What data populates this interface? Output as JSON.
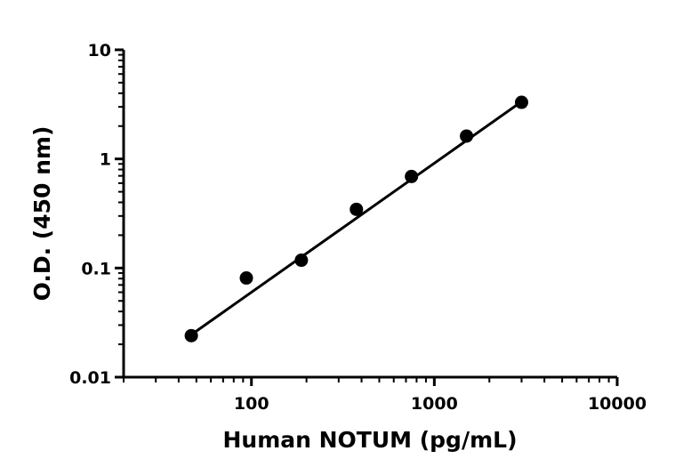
{
  "chart_data": {
    "type": "scatter",
    "title": "",
    "xlabel": "Human NOTUM (pg/mL)",
    "ylabel": "O.D. (450 nm)",
    "x_scale": "log",
    "y_scale": "log",
    "xlim": [
      20,
      10000
    ],
    "ylim": [
      0.01,
      10
    ],
    "x_ticks": [
      100,
      1000,
      10000
    ],
    "x_tick_labels": [
      "100",
      "1000",
      "10000"
    ],
    "y_ticks": [
      0.01,
      0.1,
      1,
      10
    ],
    "y_tick_labels": [
      "0.01",
      "0.1",
      "1",
      "10"
    ],
    "grid": false,
    "legend": "none",
    "series": [
      {
        "points": [
          {
            "x": 46.9,
            "y": 0.024
          },
          {
            "x": 93.8,
            "y": 0.081
          },
          {
            "x": 187.5,
            "y": 0.118
          },
          {
            "x": 375,
            "y": 0.345
          },
          {
            "x": 750,
            "y": 0.69
          },
          {
            "x": 1500,
            "y": 1.62
          },
          {
            "x": 3000,
            "y": 3.3
          }
        ],
        "marker_color": "#000000"
      }
    ],
    "fit_line": {
      "x": [
        46.9,
        3000
      ],
      "y": [
        0.0245,
        3.35
      ],
      "color": "#000000"
    }
  }
}
